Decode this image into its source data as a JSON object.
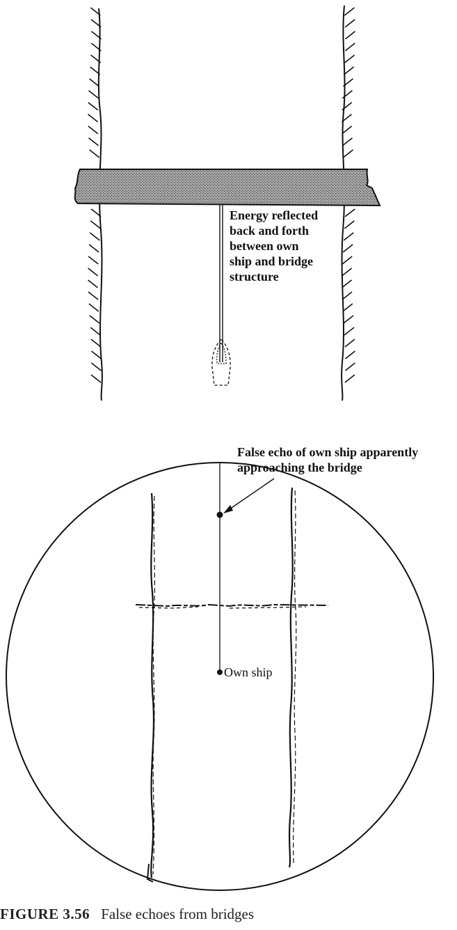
{
  "top_diagram": {
    "annotation_lines": [
      "Energy reflected",
      "back and forth",
      "between own",
      "ship and bridge",
      "structure"
    ]
  },
  "radar_display": {
    "false_echo_label_lines": [
      "False echo of own ship apparently",
      "approaching the bridge"
    ],
    "own_ship_label": "Own ship"
  },
  "caption": {
    "number": "FIGURE 3.56",
    "text": "False echoes from bridges"
  }
}
